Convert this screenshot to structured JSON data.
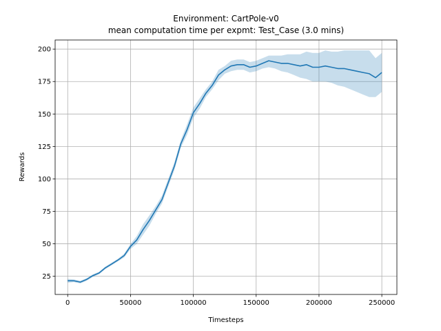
{
  "chart_data": {
    "type": "line",
    "title": "Environment: CartPole-v0",
    "subtitle": "mean computation time per expmt: Test_Case (3.0 mins)",
    "xlabel": "Timesteps",
    "ylabel": "Rewards",
    "xlim": [
      -10000,
      262000
    ],
    "ylim": [
      11,
      207
    ],
    "xticks": [
      0,
      50000,
      100000,
      150000,
      200000,
      250000
    ],
    "xtick_labels": [
      "0",
      "50000",
      "100000",
      "150000",
      "200000",
      "250000"
    ],
    "yticks": [
      25,
      50,
      75,
      100,
      125,
      150,
      175,
      200
    ],
    "ytick_labels": [
      "25",
      "50",
      "75",
      "100",
      "125",
      "150",
      "175",
      "200"
    ],
    "grid": true,
    "colors": {
      "line": "#1f77b4",
      "band": "#1f77b4"
    },
    "series": [
      {
        "x": [
          0,
          5000,
          10000,
          15000,
          20000,
          25000,
          30000,
          35000,
          40000,
          45000,
          50000,
          55000,
          60000,
          65000,
          70000,
          75000,
          80000,
          85000,
          90000,
          95000,
          100000,
          105000,
          110000,
          115000,
          120000,
          125000,
          130000,
          135000,
          140000,
          145000,
          150000,
          155000,
          160000,
          165000,
          170000,
          175000,
          180000,
          185000,
          190000,
          195000,
          200000,
          205000,
          210000,
          215000,
          220000,
          225000,
          230000,
          235000,
          240000,
          245000,
          250000
        ],
        "y": [
          21.5,
          21.5,
          20.5,
          22.5,
          25.5,
          27.5,
          31.5,
          34.5,
          37.5,
          41,
          48,
          53,
          61,
          68,
          76,
          84,
          97,
          110,
          127,
          138,
          151,
          158,
          166,
          172,
          180,
          184,
          187,
          188,
          188,
          186,
          187,
          189,
          191,
          190,
          189,
          189,
          188,
          187,
          188,
          186,
          186,
          187,
          186,
          185,
          185,
          184,
          183,
          182,
          181,
          178,
          182
        ],
        "lower": [
          20,
          20.5,
          19.5,
          21.5,
          24.5,
          26.5,
          30.5,
          33.5,
          36.5,
          39.5,
          46,
          50,
          57,
          64,
          73,
          81,
          94,
          107,
          124,
          134,
          147,
          154,
          163,
          169,
          176,
          181,
          183,
          184,
          184,
          182,
          183,
          185,
          186,
          185,
          183,
          182,
          180,
          178,
          177,
          175,
          175,
          175,
          174,
          172,
          171,
          169,
          167,
          165,
          163,
          163,
          167
        ],
        "upper": [
          23,
          22.5,
          21.5,
          23.5,
          26.5,
          28.5,
          32.5,
          35.5,
          38.5,
          42.5,
          50,
          56,
          65,
          72,
          79,
          87,
          100,
          113,
          130,
          142,
          155,
          162,
          169,
          175,
          184,
          187,
          191,
          192,
          192,
          190,
          191,
          193,
          195,
          195,
          195,
          196,
          196,
          196,
          198,
          197,
          197,
          199,
          198,
          198,
          199,
          199,
          199,
          199,
          199,
          193,
          197
        ]
      }
    ]
  }
}
